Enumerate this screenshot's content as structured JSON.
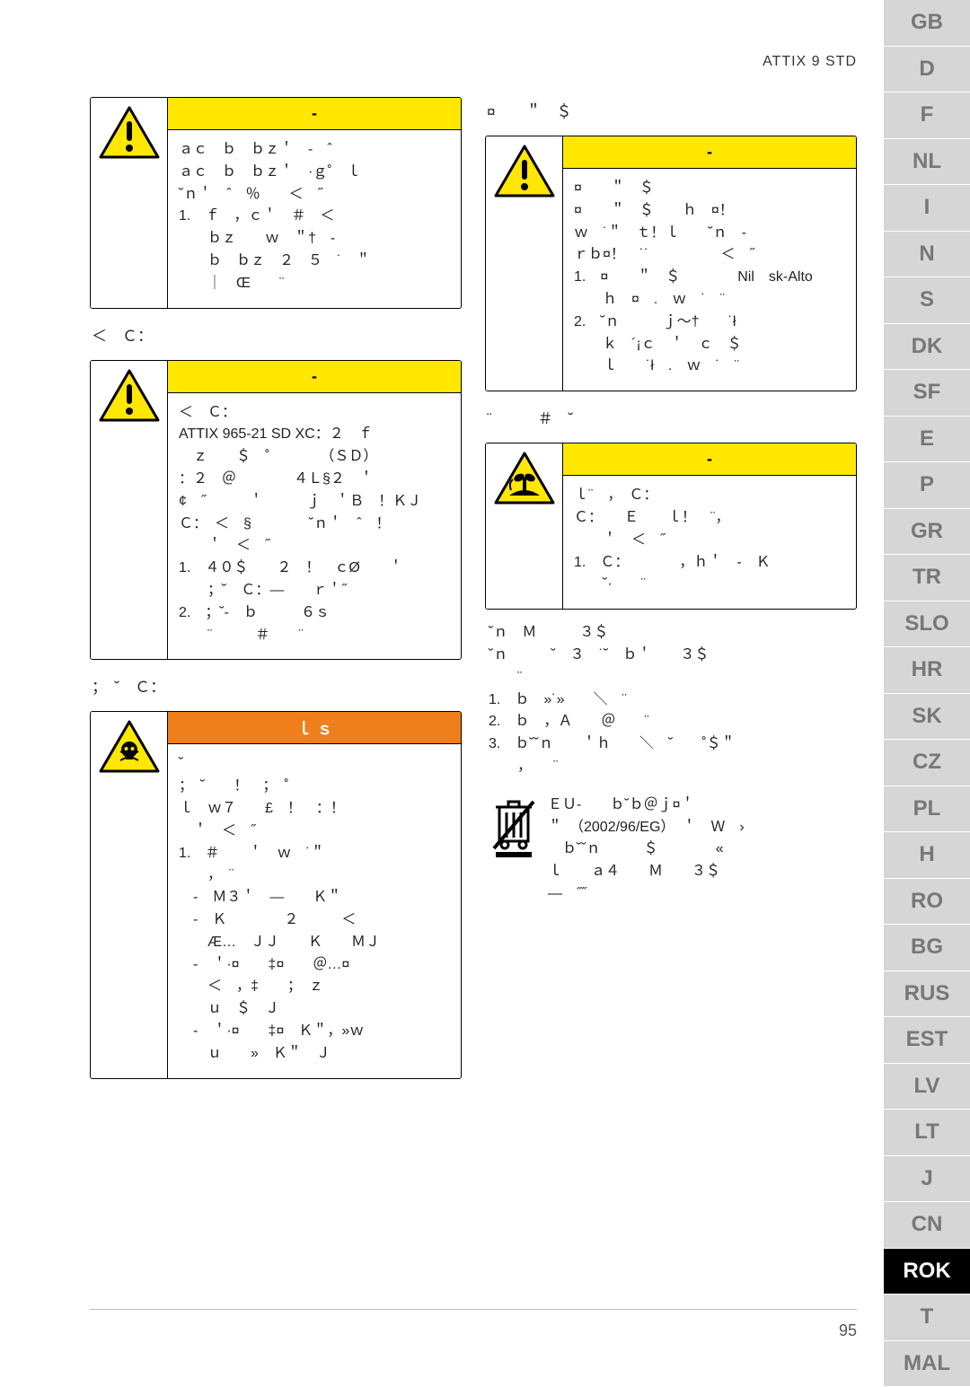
{
  "header": {
    "product": "ATTIX 9 STD"
  },
  "page_number": "95",
  "languages": {
    "items": [
      "GB",
      "D",
      "F",
      "NL",
      "I",
      "N",
      "S",
      "DK",
      "SF",
      "E",
      "P",
      "GR",
      "TR",
      "SLO",
      "HR",
      "SK",
      "CZ",
      "PL",
      "H",
      "RO",
      "BG",
      "RUS",
      "EST",
      "LV",
      "LT",
      "J",
      "CN",
      "ROK",
      "T",
      "MAL"
    ],
    "selected": "ROK",
    "bg": "#d6d6d6",
    "fg": "#777777",
    "selected_bg": "#000000",
    "selected_fg": "#ffffff"
  },
  "colors": {
    "yellow": "#ffe700",
    "orange": "#ef7f1a",
    "box_border": "#000000"
  },
  "left_column": {
    "box1": {
      "icon": "warning",
      "title": "-",
      "body": "ａｃ　ｂ　ｂｚ＇　-　ˆ\nａｃ　ｂ　ｂｚ＇　·ｇ˚　ｌ\n˘ｎ＇　ˆ　％　　＜　˝\n1.　ｆ　，ｃ＇　＃　＜\n　　ｂｚ　　ｗ　＂†　-\n　　ｂ　ｂｚ　２　５　˙　＂\n　　｜　Œ　　¨"
    },
    "heading1": "＜　Ｃ：",
    "box2": {
      "icon": "warning",
      "title": "-",
      "body": "＜　Ｃ：\nATTIX 965-21 SD XC：２　ｆ\n　ｚ　　＄　˚　　　　（ＳＤ）\n：２　＠　　　　４Ｌ§２　＇\n¢　˝　　　＇　　　ｊ　＇Ｂ　！ＫＪ\nＣ：　＜　§　　　　˘ｎ＇　ˆ　！\n　　＇　＜　˝\n1.　４０＄　　２　！　ｃØ　　＇\n　　；˘　Ｃ：―　　ｒ＇˝\n2.　；˘-　ｂ　　　６ｓ\n　　¨　　　＃　　¨"
    },
    "heading2": "；　˘　Ｃ：",
    "box3": {
      "icon": "skull",
      "title": "ｌ ｓ",
      "body": "˘\n；　˘　　！　；　˚\nｌ　ｗ７　　£　！　：！\n　＇　＜　˝\n1.　＃　　＇　ｗ　˙＂\n　　，　¨\n　-　Ｍ３＇　―　　Ｋ＂\n　-　Ｋ　　　　２　　　＜\n　　Æ…　ＪＪ　　Ｋ　　ＭＪ\n　-　＇·¤　　‡¤　　＠…¤\n　　＜　，‡　　；　ｚ\n　　ｕ　＄　Ｊ\n　-　＇·¤　　‡¤　Ｋ＂，»ｗ\n　　ｕ　　»　Ｋ＂　Ｊ"
    }
  },
  "right_column": {
    "heading1": "¤　　＂　＄",
    "box1": {
      "icon": "warning",
      "title": "-",
      "body": "¤　　＂　＄\n¤　　＂　＄　　ｈ　¤！\nｗ　˙＂　ｔ！ｌ　　˘ｎ　-\nｒｂ¤！　˙˙　　　　　＜　˝\n1.　¤　　＂　＄　　　　Nil　sk-Alto\n　　ｈ　¤　.　ｗ　˙　¨\n2.　˘ｎ　　　ｊ～†　　˙ł\n　　ｋ　´¡ｃ　＇　ｃ　＄\n　　ｌ　　˙ł　.　ｗ　˙　¨"
    },
    "heading2": "¨　　　＃　˘",
    "box2": {
      "icon": "env",
      "title": "-",
      "body": "ｌ¨　，　Ｃ：\nＣ：　　Ｅ　　ｌ！　¨，\n　　＇　＜　˝\n1.　Ｃ：　　　　，ｈ＇　-　Ｋ\n　　˘·　　¨"
    },
    "para": "˘ｎ　Ｍ　　　３＄\n˘ｎ　　　˘　３　˙˘　ｂ＇　　３＄\n　　¨\n1.　ｂ　»˙»　　＼　¨\n2.　ｂ　，Ａ　　＠　　¨\n3.　ｂ˘˘ｎ　　＇ｈ　　＼　˘　　˚＄＂\n　　，　　¨",
    "recycle": "ＥＵ-　　ｂ˘ｂ＠ｊ¤＇\n＂　（2002/96/EG）　＇　Ｗ　›\n　ｂ˘˘ｎ　　　＄　　　　«\nｌ　　ａ４　　Ｍ　　３＄\n―　˝˝"
  }
}
